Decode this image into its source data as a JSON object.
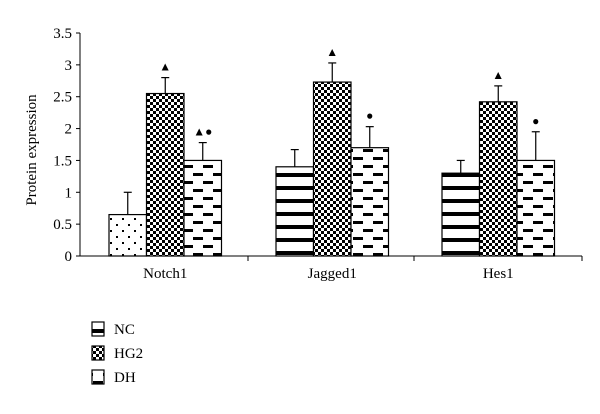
{
  "chart_data": {
    "type": "bar",
    "title": "",
    "xlabel": "",
    "ylabel": "Protein expression",
    "ylim": [
      0,
      3.5
    ],
    "ytick_step": 0.5,
    "categories": [
      "Notch1",
      "Jagged1",
      "Hes1"
    ],
    "series": [
      {
        "name": "NC",
        "pattern": "horizontal-stripes",
        "values": [
          0.65,
          1.4,
          1.3
        ],
        "errors": [
          0.35,
          0.27,
          0.2
        ]
      },
      {
        "name": "HG2",
        "pattern": "checkered",
        "values": [
          2.55,
          2.73,
          2.42
        ],
        "errors": [
          0.25,
          0.3,
          0.25
        ]
      },
      {
        "name": "DH",
        "pattern": "dashes",
        "values": [
          1.5,
          1.7,
          1.5
        ],
        "errors": [
          0.28,
          0.33,
          0.45
        ]
      }
    ],
    "annotations": [
      {
        "category": "Notch1",
        "series": "HG2",
        "text": "▲"
      },
      {
        "category": "Notch1",
        "series": "DH",
        "text": "▲●"
      },
      {
        "category": "Jagged1",
        "series": "HG2",
        "text": "▲"
      },
      {
        "category": "Jagged1",
        "series": "DH",
        "text": "●"
      },
      {
        "category": "Hes1",
        "series": "HG2",
        "text": "▲"
      },
      {
        "category": "Hes1",
        "series": "DH",
        "text": "●"
      }
    ],
    "legend": [
      "NC",
      "HG2",
      "DH"
    ],
    "legend_position": "bottom-left",
    "grid": false,
    "colors": {
      "bar_stroke": "#000000",
      "fill": "#ffffff",
      "pattern": "#000000"
    }
  }
}
